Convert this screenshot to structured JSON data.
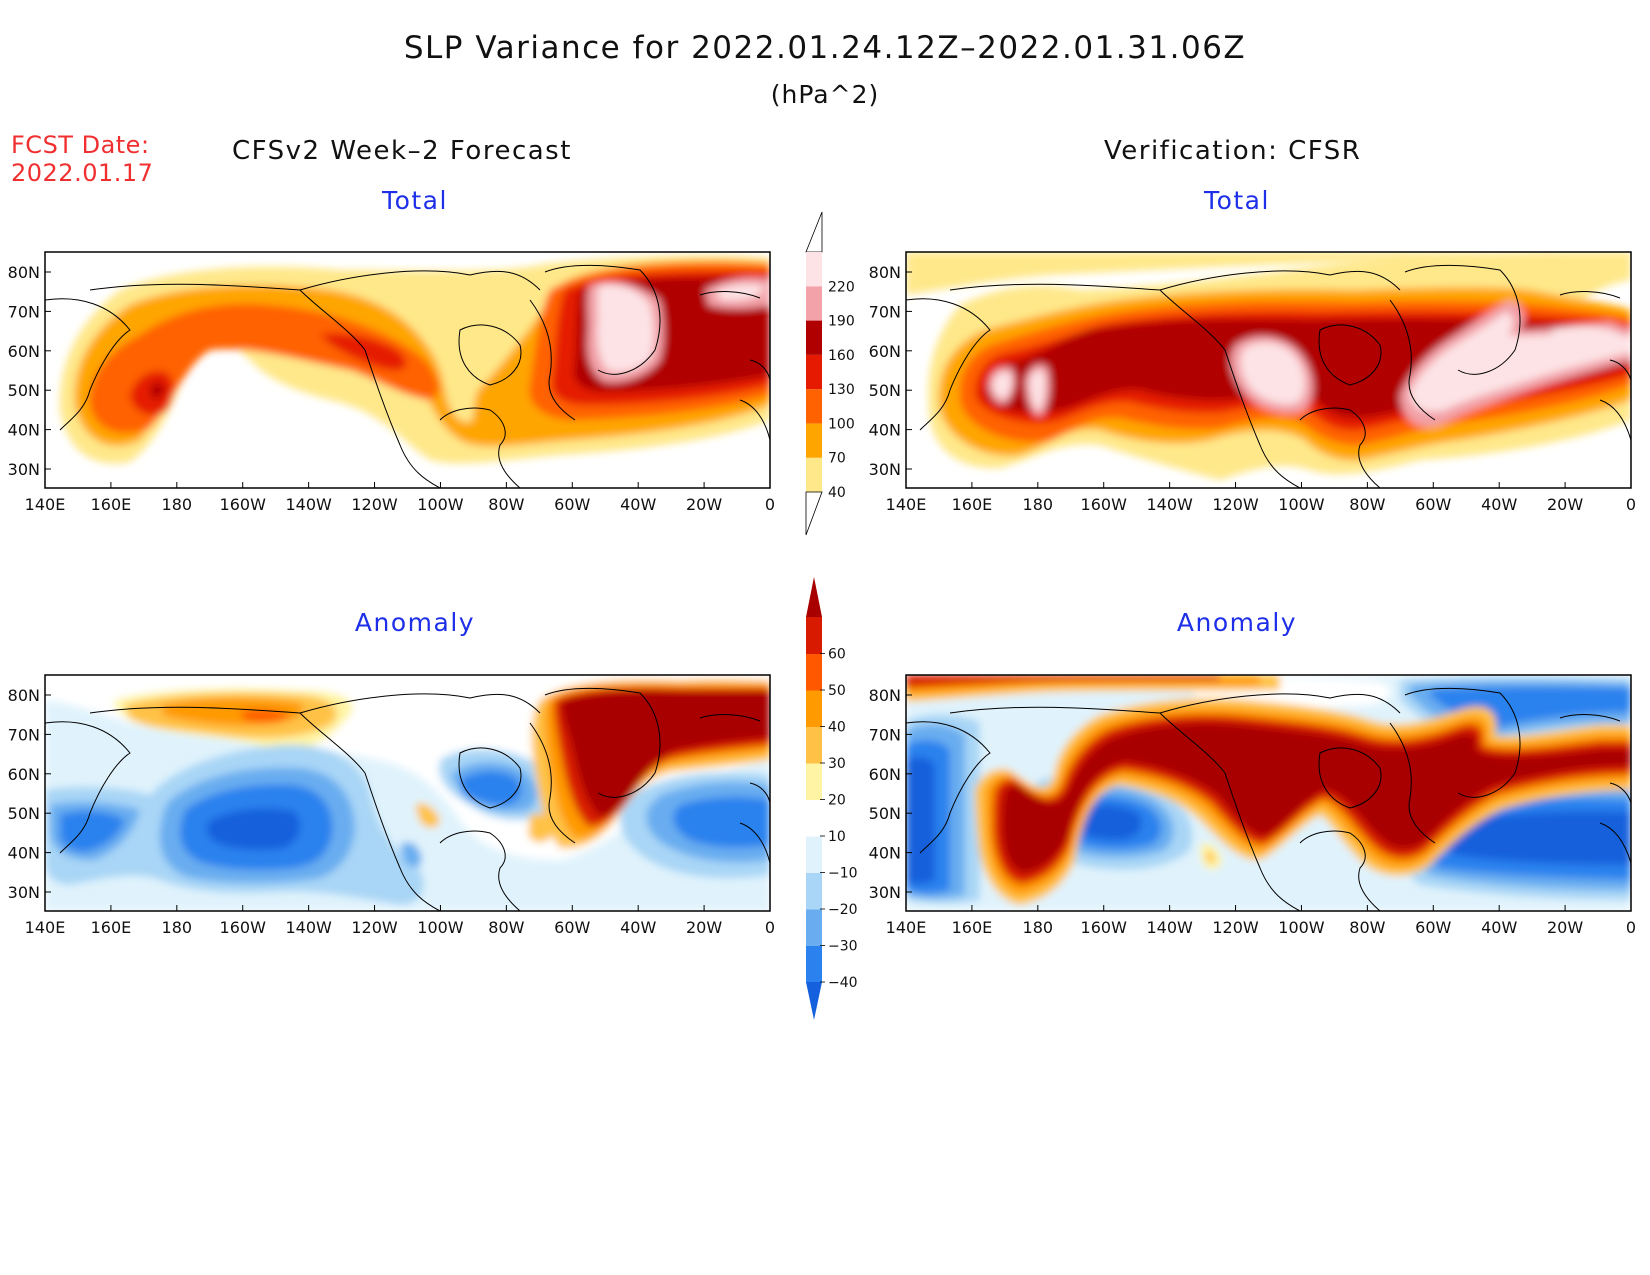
{
  "title": "SLP Variance for 2022.01.24.12Z–2022.01.31.06Z",
  "units": "(hPa^2)",
  "forecast_date": {
    "label": "FCST Date:",
    "value": "2022.01.17"
  },
  "left_header": "CFSv2 Week–2 Forecast",
  "right_header": "Verification: CFSR",
  "panels": [
    {
      "id": "forecast-total",
      "subtitle": "Total"
    },
    {
      "id": "verification-total",
      "subtitle": "Total"
    },
    {
      "id": "forecast-anomaly",
      "subtitle": "Anomaly"
    },
    {
      "id": "verification-anomaly",
      "subtitle": "Anomaly"
    }
  ],
  "axes": {
    "lon_labels": [
      "140E",
      "160E",
      "180",
      "160W",
      "140W",
      "120W",
      "100W",
      "80W",
      "60W",
      "40W",
      "20W",
      "0"
    ],
    "lat_labels": [
      "80N",
      "70N",
      "60N",
      "50N",
      "40N",
      "30N"
    ]
  },
  "colorbars": {
    "total": {
      "levels": [
        "40",
        "70",
        "100",
        "130",
        "160",
        "190",
        "220"
      ],
      "colors": [
        "#ffe88a",
        "#ffa500",
        "#ff6200",
        "#e51a00",
        "#b00000",
        "#f2a2a8",
        "#fde3e5"
      ]
    },
    "anomaly": {
      "levels": [
        "−40",
        "−30",
        "−20",
        "−10",
        "10",
        "20",
        "30",
        "40",
        "50",
        "60"
      ],
      "colors": [
        "#1560dc",
        "#2b82ee",
        "#69adf0",
        "#a9d6f6",
        "#e0f3fc",
        "#ffffff",
        "#fff4a3",
        "#ffc246",
        "#ff9a00",
        "#ff5800",
        "#d81a00",
        "#a80000"
      ]
    }
  }
}
